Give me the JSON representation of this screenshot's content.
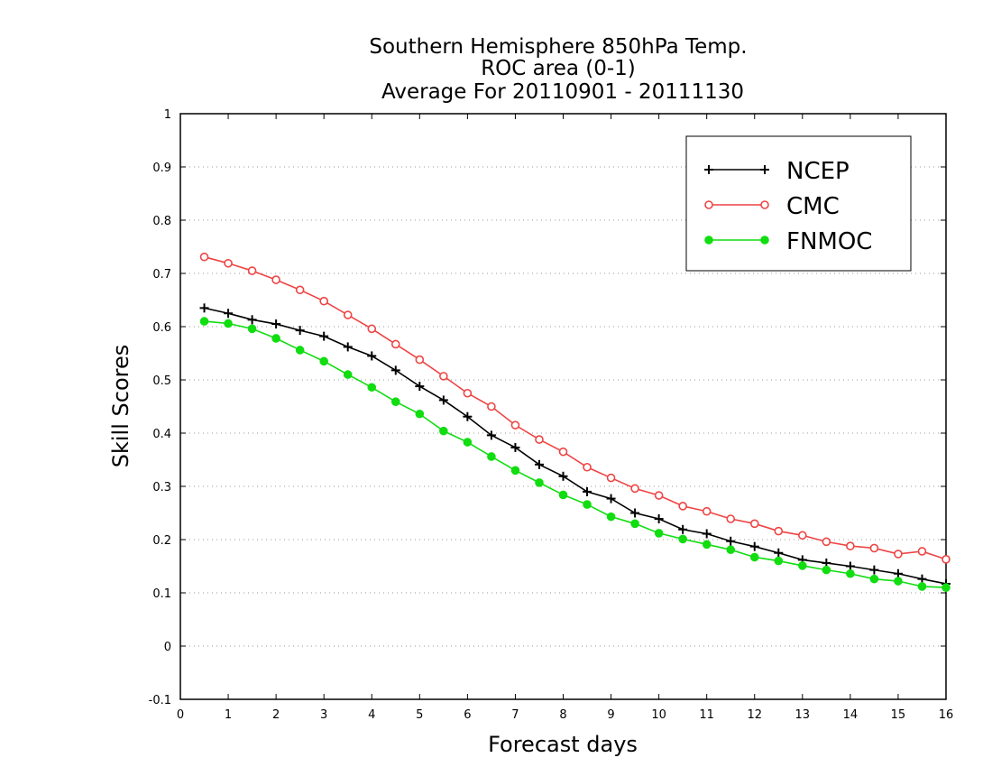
{
  "chart_data": {
    "type": "line",
    "title": [
      "Southern Hemisphere 850hPa Temp.",
      "ROC area (0-1)",
      "Average For 20110901 - 20111130"
    ],
    "xlabel": "Forecast days",
    "ylabel": "Skill Scores",
    "xlim": [
      0,
      16
    ],
    "ylim": [
      -0.1,
      1
    ],
    "xticks": [
      0,
      1,
      2,
      3,
      4,
      5,
      6,
      7,
      8,
      9,
      10,
      11,
      12,
      13,
      14,
      15,
      16
    ],
    "yticks": [
      -0.1,
      0,
      0.1,
      0.2,
      0.3,
      0.4,
      0.5,
      0.6,
      0.7,
      0.8,
      0.9,
      1
    ],
    "ytick_labels": [
      "-0.1",
      "0",
      "0.1",
      "0.2",
      "0.3",
      "0.4",
      "0.5",
      "0.6",
      "0.7",
      "0.8",
      "0.9",
      "1"
    ],
    "grid": "horizontal dotted",
    "legend_position": "top-right",
    "x": [
      0.5,
      1,
      1.5,
      2,
      2.5,
      3,
      3.5,
      4,
      4.5,
      5,
      5.5,
      6,
      6.5,
      7,
      7.5,
      8,
      8.5,
      9,
      9.5,
      10,
      10.5,
      11,
      11.5,
      12,
      12.5,
      13,
      13.5,
      14,
      14.5,
      15,
      15.5,
      16
    ],
    "series": [
      {
        "name": "NCEP",
        "color": "#000000",
        "marker": "plus",
        "values": [
          0.635,
          0.625,
          0.613,
          0.605,
          0.593,
          0.582,
          0.562,
          0.545,
          0.518,
          0.488,
          0.462,
          0.431,
          0.396,
          0.373,
          0.341,
          0.319,
          0.29,
          0.277,
          0.25,
          0.239,
          0.219,
          0.211,
          0.197,
          0.187,
          0.175,
          0.162,
          0.156,
          0.15,
          0.143,
          0.136,
          0.126,
          0.117
        ]
      },
      {
        "name": "CMC",
        "color": "#ee4444",
        "marker": "open-circle",
        "values": [
          0.731,
          0.719,
          0.705,
          0.688,
          0.669,
          0.648,
          0.622,
          0.596,
          0.567,
          0.538,
          0.507,
          0.475,
          0.45,
          0.415,
          0.388,
          0.365,
          0.336,
          0.316,
          0.296,
          0.283,
          0.263,
          0.253,
          0.239,
          0.23,
          0.216,
          0.208,
          0.196,
          0.188,
          0.184,
          0.173,
          0.178,
          0.163
        ]
      },
      {
        "name": "FNMOC",
        "color": "#11dd11",
        "marker": "filled-circle",
        "values": [
          0.61,
          0.606,
          0.596,
          0.578,
          0.556,
          0.535,
          0.51,
          0.486,
          0.459,
          0.436,
          0.404,
          0.383,
          0.356,
          0.33,
          0.307,
          0.284,
          0.266,
          0.243,
          0.23,
          0.212,
          0.201,
          0.191,
          0.181,
          0.167,
          0.16,
          0.151,
          0.143,
          0.136,
          0.126,
          0.122,
          0.112,
          0.11
        ]
      }
    ]
  }
}
